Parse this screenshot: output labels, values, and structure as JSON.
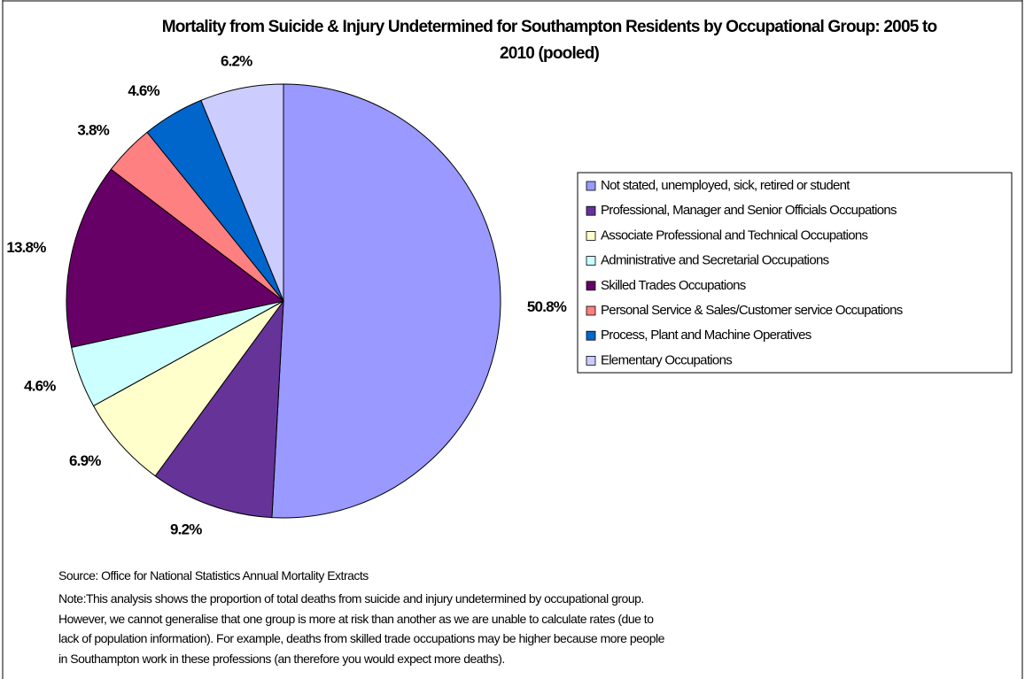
{
  "chart_data": {
    "type": "pie",
    "title": "Mortality from Suicide & Injury Undetermined for Southampton Residents by Occupational Group: 2005 to 2010 (pooled)",
    "categories": [
      "Not stated, unemployed, sick, retired or student",
      "Professional, Manager and Senior Officials Occupations",
      "Associate Professional and Technical Occupations",
      "Administrative and Secretarial Occupations",
      "Skilled Trades Occupations",
      "Personal Service & Sales/Customer service Occupations",
      "Process, Plant and Machine Operatives",
      "Elementary Occupations"
    ],
    "values": [
      50.8,
      9.2,
      6.9,
      4.6,
      13.8,
      3.8,
      4.6,
      6.2
    ],
    "value_labels": [
      "50.8%",
      "9.2%",
      "6.9%",
      "4.6%",
      "13.8%",
      "3.8%",
      "4.6%",
      "6.2%"
    ],
    "colors": [
      "#9999ff",
      "#663399",
      "#ffffcc",
      "#ccffff",
      "#660066",
      "#ff8080",
      "#0066cc",
      "#ccccff"
    ],
    "legend": "right",
    "source": "Source: Office for National Statistics Annual Mortality Extracts",
    "note": "Note:This analysis shows the proportion of total deaths from suicide and injury undetermined by occupational group. However, we cannot generalise that one group is more at risk than another as we are unable to calculate rates (due to lack of population information). For example, deaths from skilled trade occupations may be higher because more people in Southampton work in these professions (an therefore you would expect more deaths)."
  }
}
